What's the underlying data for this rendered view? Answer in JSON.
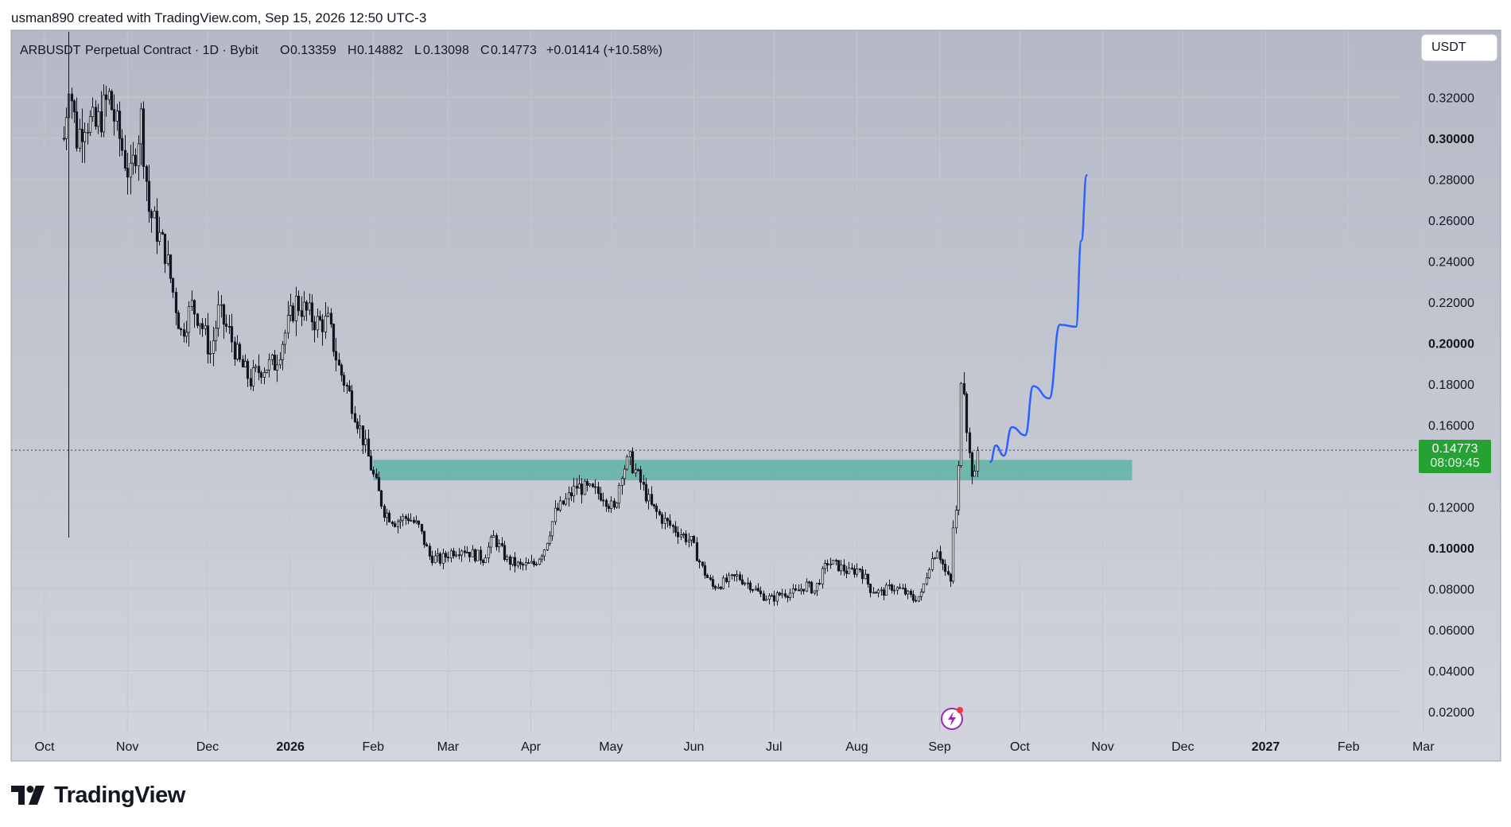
{
  "attribution": "usman890 created with TradingView.com, Sep 15, 2026 12:50 UTC-3",
  "legend": {
    "symbol": "ARBUSDT",
    "description": "Perpetual Contract · 1D · Bybit",
    "open_label": "O",
    "open": "0.13359",
    "high_label": "H",
    "high": "0.14882",
    "low_label": "L",
    "low": "0.13098",
    "close_label": "C",
    "close": "0.14773",
    "change": "+0.01414 (+10.58%)"
  },
  "currency_button": "USDT",
  "price_tag": {
    "price": "0.14773",
    "countdown": "08:09:45"
  },
  "brand": "TradingView",
  "icons": {
    "brand_logo": "tradingview-logo-icon",
    "replay": "lightning-replay-icon"
  },
  "colors": {
    "background_top": "#b5b9c5",
    "background_bottom": "#d2d5de",
    "candle": "#131722",
    "zone": "#5fb3a4",
    "projection": "#2962ff",
    "price_tag": "#26a134",
    "replay_icon": "#9c27b0"
  },
  "chart_data": {
    "type": "candlestick",
    "y_axis": {
      "ylim": [
        0.0,
        0.335
      ],
      "ticks": [
        "0.02000",
        "0.04000",
        "0.06000",
        "0.08000",
        "0.10000",
        "0.12000",
        "0.14000",
        "0.16000",
        "0.18000",
        "0.20000",
        "0.22000",
        "0.24000",
        "0.26000",
        "0.28000",
        "0.30000",
        "0.32000"
      ],
      "bold_ticks": [
        "0.10000",
        "0.20000",
        "0.30000"
      ]
    },
    "x_axis": {
      "labels": [
        "Oct",
        "Nov",
        "Dec",
        "2026",
        "Feb",
        "Mar",
        "Apr",
        "May",
        "Jun",
        "Jul",
        "Aug",
        "Sep",
        "Oct",
        "Nov",
        "Dec",
        "2027",
        "Feb",
        "Mar"
      ],
      "bold_labels": [
        "2026",
        "2027"
      ]
    },
    "price_path": [
      [
        "2025-10-08",
        0.3
      ],
      [
        "2025-10-10",
        0.33
      ],
      [
        "2025-10-13",
        0.3
      ],
      [
        "2025-10-16",
        0.31
      ],
      [
        "2025-10-20",
        0.305
      ],
      [
        "2025-10-25",
        0.32
      ],
      [
        "2025-10-29",
        0.3
      ],
      [
        "2025-11-02",
        0.28
      ],
      [
        "2025-11-06",
        0.31
      ],
      [
        "2025-11-09",
        0.265
      ],
      [
        "2025-11-12",
        0.255
      ],
      [
        "2025-11-15",
        0.245
      ],
      [
        "2025-11-18",
        0.225
      ],
      [
        "2025-11-21",
        0.205
      ],
      [
        "2025-11-25",
        0.218
      ],
      [
        "2025-11-28",
        0.212
      ],
      [
        "2025-12-02",
        0.195
      ],
      [
        "2025-12-05",
        0.215
      ],
      [
        "2025-12-09",
        0.205
      ],
      [
        "2025-12-13",
        0.19
      ],
      [
        "2025-12-17",
        0.182
      ],
      [
        "2025-12-21",
        0.188
      ],
      [
        "2025-12-26",
        0.19
      ],
      [
        "2025-12-30",
        0.205
      ],
      [
        "2026-01-03",
        0.22
      ],
      [
        "2026-01-07",
        0.215
      ],
      [
        "2026-01-11",
        0.21
      ],
      [
        "2026-01-15",
        0.21
      ],
      [
        "2026-01-19",
        0.188
      ],
      [
        "2026-01-23",
        0.175
      ],
      [
        "2026-01-27",
        0.158
      ],
      [
        "2026-02-01",
        0.135
      ],
      [
        "2026-02-05",
        0.118
      ],
      [
        "2026-02-09",
        0.113
      ],
      [
        "2026-02-14",
        0.115
      ],
      [
        "2026-02-18",
        0.11
      ],
      [
        "2026-02-22",
        0.096
      ],
      [
        "2026-02-26",
        0.094
      ],
      [
        "2026-03-02",
        0.098
      ],
      [
        "2026-03-06",
        0.1
      ],
      [
        "2026-03-10",
        0.097
      ],
      [
        "2026-03-14",
        0.095
      ],
      [
        "2026-03-18",
        0.105
      ],
      [
        "2026-03-23",
        0.094
      ],
      [
        "2026-03-28",
        0.091
      ],
      [
        "2026-04-02",
        0.092
      ],
      [
        "2026-04-06",
        0.1
      ],
      [
        "2026-04-10",
        0.117
      ],
      [
        "2026-04-14",
        0.123
      ],
      [
        "2026-04-18",
        0.13
      ],
      [
        "2026-04-23",
        0.128
      ],
      [
        "2026-04-28",
        0.126
      ],
      [
        "2026-05-02",
        0.118
      ],
      [
        "2026-05-05",
        0.138
      ],
      [
        "2026-05-08",
        0.143
      ],
      [
        "2026-05-12",
        0.132
      ],
      [
        "2026-05-16",
        0.12
      ],
      [
        "2026-05-21",
        0.113
      ],
      [
        "2026-05-26",
        0.108
      ],
      [
        "2026-05-31",
        0.103
      ],
      [
        "2026-06-04",
        0.09
      ],
      [
        "2026-06-08",
        0.081
      ],
      [
        "2026-06-12",
        0.083
      ],
      [
        "2026-06-17",
        0.086
      ],
      [
        "2026-06-22",
        0.082
      ],
      [
        "2026-06-26",
        0.077
      ],
      [
        "2026-06-30",
        0.075
      ],
      [
        "2026-07-04",
        0.078
      ],
      [
        "2026-07-09",
        0.078
      ],
      [
        "2026-07-13",
        0.082
      ],
      [
        "2026-07-16",
        0.079
      ],
      [
        "2026-07-21",
        0.093
      ],
      [
        "2026-07-25",
        0.091
      ],
      [
        "2026-07-29",
        0.088
      ],
      [
        "2026-08-02",
        0.09
      ],
      [
        "2026-08-06",
        0.08
      ],
      [
        "2026-08-10",
        0.078
      ],
      [
        "2026-08-14",
        0.081
      ],
      [
        "2026-08-18",
        0.079
      ],
      [
        "2026-08-22",
        0.075
      ],
      [
        "2026-08-25",
        0.077
      ],
      [
        "2026-08-28",
        0.092
      ],
      [
        "2026-08-31",
        0.1
      ],
      [
        "2026-09-03",
        0.088
      ],
      [
        "2026-09-05",
        0.083
      ],
      [
        "2026-09-06",
        0.11
      ],
      [
        "2026-09-07",
        0.117
      ],
      [
        "2026-09-08",
        0.138
      ],
      [
        "2026-09-09",
        0.185
      ],
      [
        "2026-09-10",
        0.18
      ],
      [
        "2026-09-11",
        0.16
      ],
      [
        "2026-09-12",
        0.145
      ],
      [
        "2026-09-13",
        0.138
      ],
      [
        "2026-09-14",
        0.134
      ],
      [
        "2026-09-15",
        0.14773
      ]
    ],
    "annotations": [
      {
        "type": "rectangle",
        "label": "",
        "x_start": "2026-02-01",
        "x_end": "2026-11-12",
        "y_low": 0.133,
        "y_high": 0.143
      },
      {
        "type": "projection_path",
        "points": [
          [
            "2026-09-20",
            0.142
          ],
          [
            "2026-09-22",
            0.15
          ],
          [
            "2026-09-25",
            0.145
          ],
          [
            "2026-09-28",
            0.159
          ],
          [
            "2026-10-03",
            0.155
          ],
          [
            "2026-10-06",
            0.179
          ],
          [
            "2026-10-12",
            0.173
          ],
          [
            "2026-10-16",
            0.209
          ],
          [
            "2026-10-22",
            0.208
          ],
          [
            "2026-10-24",
            0.25
          ],
          [
            "2026-10-26",
            0.282
          ]
        ]
      },
      {
        "type": "horizontal_price_line",
        "y": 0.14773
      }
    ]
  }
}
